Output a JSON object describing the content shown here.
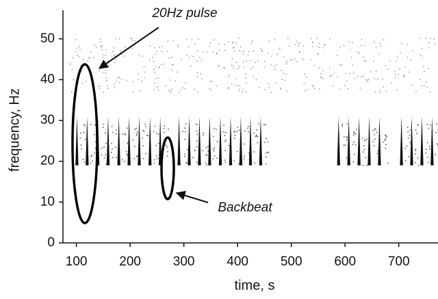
{
  "chart_data": {
    "type": "spectrogram",
    "xlabel": "time, s",
    "ylabel": "frequency, Hz",
    "xlim": [
      75,
      773
    ],
    "ylim": [
      0,
      57
    ],
    "xticks": [
      100,
      200,
      300,
      400,
      500,
      600,
      700
    ],
    "yticks": [
      0,
      10,
      20,
      30,
      40,
      50
    ],
    "pulse_band": [
      19,
      31
    ],
    "color": "#111111",
    "x": [
      101,
      120,
      140,
      159,
      179,
      198,
      217,
      237,
      256,
      291,
      310,
      329,
      348,
      368,
      387,
      406,
      424,
      443,
      588,
      607,
      626,
      645,
      664,
      705,
      724,
      743,
      762
    ],
    "annotations": [
      "20Hz pulse",
      "Backbeat"
    ]
  }
}
